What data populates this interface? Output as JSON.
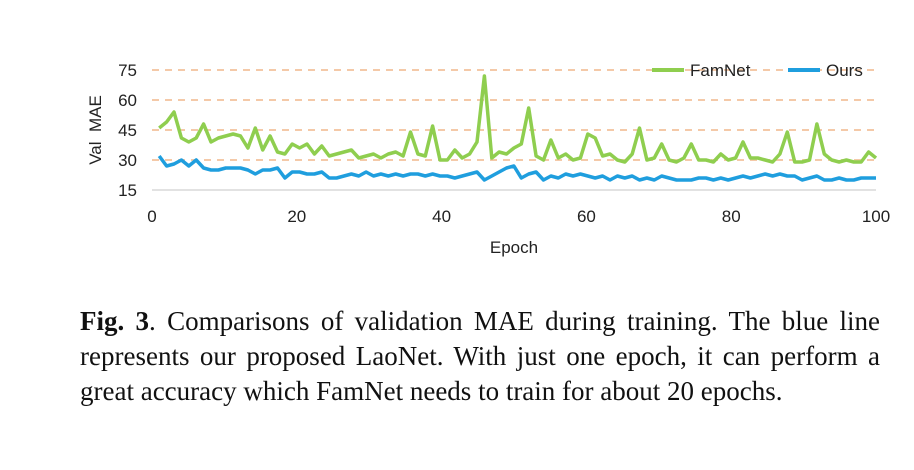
{
  "chart_data": {
    "type": "line",
    "title": "",
    "xlabel": "Epoch",
    "ylabel": "Val  MAE",
    "xlim": [
      0,
      100
    ],
    "ylim": [
      15,
      75
    ],
    "xticks": [
      0,
      20,
      40,
      60,
      80,
      100
    ],
    "yticks": [
      15,
      30,
      45,
      60,
      75
    ],
    "grid": "horizontal dashed",
    "legend": "top-right",
    "series": [
      {
        "name": "FamNet",
        "color": "#8fce4f",
        "values": [
          46,
          49,
          54,
          41,
          39,
          41,
          48,
          39,
          41,
          42,
          43,
          42,
          36,
          46,
          35,
          42,
          34,
          33,
          38,
          36,
          38,
          33,
          37,
          32,
          33,
          34,
          35,
          31,
          32,
          33,
          31,
          33,
          34,
          32,
          44,
          33,
          32,
          47,
          30,
          30,
          35,
          31,
          33,
          39,
          72,
          31,
          34,
          33,
          36,
          38,
          56,
          32,
          30,
          40,
          31,
          33,
          30,
          31,
          43,
          41,
          32,
          33,
          30,
          29,
          33,
          46,
          30,
          31,
          38,
          30,
          29,
          31,
          38,
          30,
          30,
          29,
          33,
          30,
          31,
          39,
          31,
          31,
          30,
          29,
          33,
          44,
          29,
          29,
          30,
          48,
          33,
          30,
          29,
          30,
          29,
          29,
          34,
          31
        ]
      },
      {
        "name": "Ours",
        "color": "#1f9ede",
        "values": [
          32,
          27,
          28,
          30,
          27,
          30,
          26,
          25,
          25,
          26,
          26,
          26,
          25,
          23,
          25,
          25,
          26,
          21,
          24,
          24,
          23,
          23,
          24,
          21,
          21,
          22,
          23,
          22,
          24,
          22,
          23,
          22,
          23,
          22,
          23,
          23,
          22,
          23,
          22,
          22,
          21,
          22,
          23,
          24,
          20,
          22,
          24,
          26,
          27,
          21,
          23,
          24,
          20,
          22,
          21,
          23,
          22,
          23,
          22,
          21,
          22,
          20,
          22,
          21,
          22,
          20,
          21,
          20,
          22,
          21,
          20,
          20,
          20,
          21,
          21,
          20,
          21,
          20,
          21,
          22,
          21,
          22,
          23,
          22,
          23,
          22,
          22,
          20,
          21,
          22,
          20,
          20,
          21,
          20,
          20,
          21,
          21,
          21
        ]
      }
    ]
  },
  "caption": {
    "label": "Fig. 3",
    "text": ". Comparisons of validation MAE during training. The blue line represents our proposed LaoNet.  With just one epoch, it can perform a great accuracy which FamNet needs to train for about 20 epochs."
  }
}
